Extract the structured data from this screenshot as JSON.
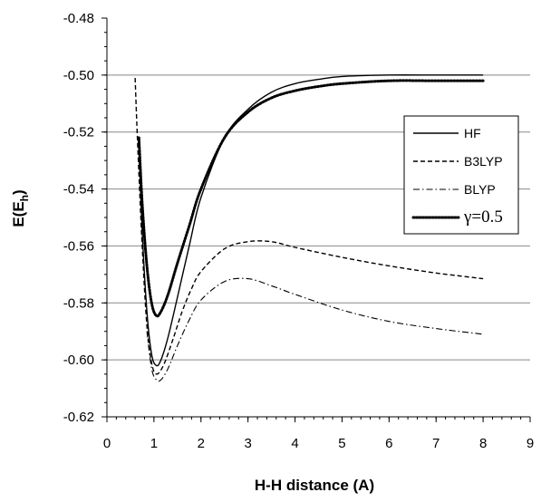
{
  "chart_data": {
    "type": "line",
    "title": "",
    "xlabel": "H-H distance (A)",
    "ylabel": {
      "main": "E(E",
      "sub": "h",
      "close": ")"
    },
    "xlim": [
      0,
      9
    ],
    "ylim": [
      -0.62,
      -0.48
    ],
    "x_ticks": [
      "0",
      "1",
      "2",
      "3",
      "4",
      "5",
      "6",
      "7",
      "8",
      "9"
    ],
    "y_ticks": [
      "-0.48",
      "-0.50",
      "-0.52",
      "-0.54",
      "-0.56",
      "-0.58",
      "-0.60",
      "-0.62"
    ],
    "grid": "horizontal",
    "legend_position": "right",
    "series": [
      {
        "name": "HF",
        "style": "solid",
        "points": [
          [
            0.68,
            -0.525
          ],
          [
            0.75,
            -0.555
          ],
          [
            0.85,
            -0.583
          ],
          [
            0.95,
            -0.598
          ],
          [
            1.05,
            -0.602
          ],
          [
            1.15,
            -0.6
          ],
          [
            1.3,
            -0.592
          ],
          [
            1.5,
            -0.578
          ],
          [
            1.75,
            -0.56
          ],
          [
            2.0,
            -0.543
          ],
          [
            2.5,
            -0.522
          ],
          [
            3.0,
            -0.512
          ],
          [
            3.5,
            -0.506
          ],
          [
            4.0,
            -0.503
          ],
          [
            4.5,
            -0.5015
          ],
          [
            5.0,
            -0.5005
          ],
          [
            6.0,
            -0.5
          ],
          [
            7.0,
            -0.5
          ],
          [
            8.0,
            -0.5
          ]
        ]
      },
      {
        "name": "B3LYP",
        "style": "dashed",
        "points": [
          [
            0.6,
            -0.501
          ],
          [
            0.65,
            -0.523
          ],
          [
            0.75,
            -0.56
          ],
          [
            0.85,
            -0.588
          ],
          [
            0.95,
            -0.601
          ],
          [
            1.05,
            -0.605
          ],
          [
            1.2,
            -0.602
          ],
          [
            1.4,
            -0.593
          ],
          [
            1.6,
            -0.583
          ],
          [
            1.8,
            -0.575
          ],
          [
            2.0,
            -0.569
          ],
          [
            2.5,
            -0.561
          ],
          [
            3.0,
            -0.5585
          ],
          [
            3.5,
            -0.5585
          ],
          [
            4.0,
            -0.5605
          ],
          [
            5.0,
            -0.564
          ],
          [
            6.0,
            -0.567
          ],
          [
            7.0,
            -0.5695
          ],
          [
            8.0,
            -0.5715
          ]
        ]
      },
      {
        "name": "BLYP",
        "style": "dashdot",
        "points": [
          [
            0.85,
            -0.59
          ],
          [
            0.95,
            -0.603
          ],
          [
            1.05,
            -0.607
          ],
          [
            1.15,
            -0.607
          ],
          [
            1.3,
            -0.603
          ],
          [
            1.5,
            -0.595
          ],
          [
            1.75,
            -0.586
          ],
          [
            2.0,
            -0.579
          ],
          [
            2.5,
            -0.5725
          ],
          [
            3.0,
            -0.5715
          ],
          [
            3.5,
            -0.574
          ],
          [
            4.0,
            -0.577
          ],
          [
            5.0,
            -0.5825
          ],
          [
            6.0,
            -0.5865
          ],
          [
            7.0,
            -0.589
          ],
          [
            8.0,
            -0.591
          ]
        ]
      },
      {
        "name": "γ=0.5",
        "style": "dotted",
        "points": [
          [
            0.68,
            -0.522
          ],
          [
            0.75,
            -0.545
          ],
          [
            0.85,
            -0.567
          ],
          [
            0.95,
            -0.58
          ],
          [
            1.05,
            -0.5845
          ],
          [
            1.15,
            -0.583
          ],
          [
            1.3,
            -0.577
          ],
          [
            1.5,
            -0.566
          ],
          [
            1.75,
            -0.553
          ],
          [
            2.0,
            -0.54
          ],
          [
            2.5,
            -0.522
          ],
          [
            3.0,
            -0.513
          ],
          [
            3.5,
            -0.508
          ],
          [
            4.0,
            -0.5055
          ],
          [
            4.5,
            -0.504
          ],
          [
            5.0,
            -0.503
          ],
          [
            6.0,
            -0.502
          ],
          [
            7.0,
            -0.502
          ],
          [
            8.0,
            -0.502
          ]
        ]
      }
    ]
  }
}
